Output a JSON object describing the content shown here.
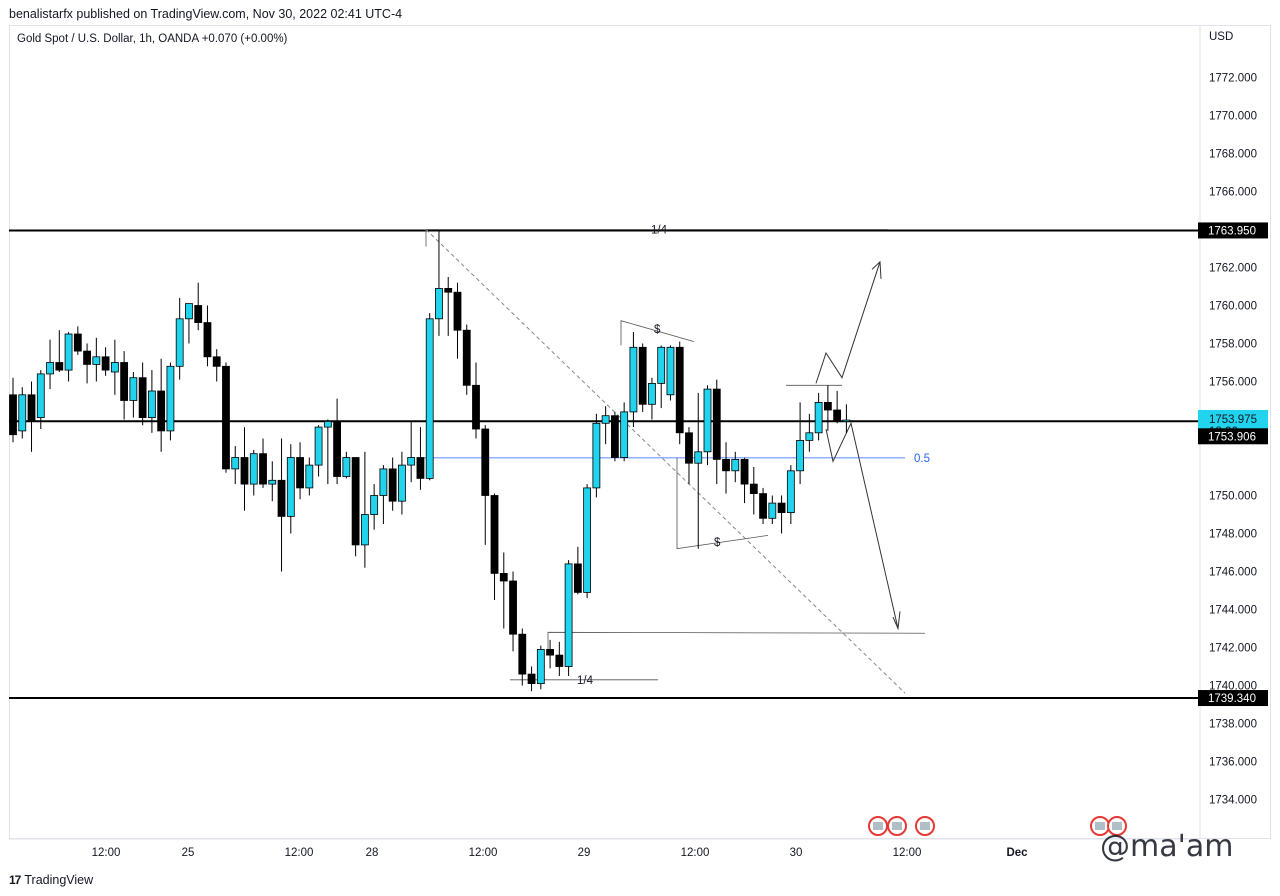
{
  "header": {
    "published": "benalistarfx published on TradingView.com, Nov 30, 2022 02:41 UTC-4"
  },
  "symbol": {
    "line": "Gold Spot / U.S. Dollar, 1h, OANDA  +0.070 (+0.00%)"
  },
  "footer": {
    "brand": "TradingView"
  },
  "watermark": "@ma'am",
  "colors": {
    "up": "#22d3ee",
    "down": "#000000",
    "level": "#000000",
    "fib": "#2962ff",
    "price_tag": "#22d3ee"
  },
  "chart_data": {
    "type": "candlestick",
    "currency": "USD",
    "ylim": [
      1733,
      1774
    ],
    "y_ticks": [
      "1772.000",
      "1770.000",
      "1768.000",
      "1766.000",
      "1762.000",
      "1760.000",
      "1758.000",
      "1756.000",
      "1750.000",
      "1748.000",
      "1746.000",
      "1744.000",
      "1742.000",
      "1740.000",
      "1738.000",
      "1736.000",
      "1734.000"
    ],
    "x_ticks": [
      "12:00",
      "25",
      "12:00",
      "28",
      "12:00",
      "29",
      "12:00",
      "30",
      "12:00",
      "Dec"
    ],
    "levels": [
      {
        "price": 1763.95,
        "label": "1763.950"
      },
      {
        "price": 1753.906,
        "label": "1753.906"
      },
      {
        "price": 1739.34,
        "label": "1739.340"
      }
    ],
    "last_price": {
      "price": 1753.975,
      "label": "1753.975",
      "countdown": "18:26"
    },
    "fib_label": "0.5",
    "annotations": [
      "1/4",
      "1/4",
      "$",
      "$"
    ],
    "candles": [
      [
        1755.3,
        1756.2,
        1752.8,
        1753.2
      ],
      [
        1753.4,
        1755.7,
        1753.0,
        1755.3
      ],
      [
        1755.3,
        1756.0,
        1752.3,
        1753.9
      ],
      [
        1754.1,
        1756.6,
        1753.5,
        1756.4
      ],
      [
        1756.4,
        1758.2,
        1755.6,
        1757.0
      ],
      [
        1757.0,
        1758.7,
        1756.5,
        1756.6
      ],
      [
        1756.6,
        1758.6,
        1756.0,
        1758.5
      ],
      [
        1758.5,
        1758.9,
        1757.4,
        1757.6
      ],
      [
        1757.6,
        1758.0,
        1755.9,
        1756.9
      ],
      [
        1756.9,
        1758.3,
        1756.0,
        1757.3
      ],
      [
        1757.3,
        1757.8,
        1756.3,
        1756.6
      ],
      [
        1756.5,
        1758.2,
        1755.3,
        1757.0
      ],
      [
        1757.0,
        1757.6,
        1754.0,
        1755.0
      ],
      [
        1755.0,
        1756.5,
        1754.1,
        1756.2
      ],
      [
        1756.2,
        1757.0,
        1753.7,
        1754.1
      ],
      [
        1754.1,
        1756.6,
        1753.3,
        1755.5
      ],
      [
        1755.5,
        1757.2,
        1752.3,
        1753.4
      ],
      [
        1753.4,
        1757.0,
        1752.9,
        1756.8
      ],
      [
        1756.8,
        1760.4,
        1756.1,
        1759.3
      ],
      [
        1759.3,
        1760.0,
        1758.0,
        1760.1
      ],
      [
        1760.0,
        1761.2,
        1758.7,
        1759.1
      ],
      [
        1759.1,
        1760.0,
        1756.8,
        1757.3
      ],
      [
        1757.3,
        1757.7,
        1756.0,
        1756.8
      ],
      [
        1756.8,
        1757.0,
        1751.2,
        1751.4
      ],
      [
        1751.4,
        1752.6,
        1750.6,
        1752.0
      ],
      [
        1752.0,
        1753.6,
        1749.2,
        1750.6
      ],
      [
        1750.6,
        1752.4,
        1750.0,
        1752.2
      ],
      [
        1752.2,
        1753.0,
        1750.4,
        1750.6
      ],
      [
        1750.6,
        1751.8,
        1749.7,
        1750.8
      ],
      [
        1750.8,
        1753.0,
        1746.0,
        1748.9
      ],
      [
        1748.9,
        1752.7,
        1748.0,
        1752.0
      ],
      [
        1752.0,
        1752.8,
        1749.8,
        1750.4
      ],
      [
        1750.4,
        1752.0,
        1750.0,
        1751.6
      ],
      [
        1751.6,
        1753.7,
        1751.0,
        1753.6
      ],
      [
        1753.6,
        1754.0,
        1750.6,
        1753.9
      ],
      [
        1753.9,
        1755.1,
        1750.6,
        1751.0
      ],
      [
        1751.0,
        1752.3,
        1750.9,
        1752.0
      ],
      [
        1752.0,
        1752.0,
        1746.8,
        1747.4
      ],
      [
        1747.4,
        1752.3,
        1746.2,
        1749.0
      ],
      [
        1749.0,
        1750.6,
        1748.2,
        1750.0
      ],
      [
        1750.0,
        1751.6,
        1748.5,
        1751.4
      ],
      [
        1751.4,
        1752.0,
        1749.2,
        1749.7
      ],
      [
        1749.7,
        1752.3,
        1749.0,
        1751.6
      ],
      [
        1751.6,
        1753.9,
        1750.7,
        1752.0
      ],
      [
        1752.0,
        1753.6,
        1750.3,
        1750.9
      ],
      [
        1750.9,
        1759.6,
        1750.8,
        1759.3
      ],
      [
        1759.3,
        1763.9,
        1758.4,
        1760.9
      ],
      [
        1760.9,
        1761.5,
        1758.4,
        1760.7
      ],
      [
        1760.7,
        1761.2,
        1757.2,
        1758.7
      ],
      [
        1758.7,
        1759.0,
        1755.3,
        1755.8
      ],
      [
        1755.8,
        1757.0,
        1753.0,
        1753.5
      ],
      [
        1753.5,
        1753.7,
        1747.4,
        1750.0
      ],
      [
        1750.0,
        1750.1,
        1744.5,
        1745.9
      ],
      [
        1745.9,
        1747.0,
        1743.0,
        1745.5
      ],
      [
        1745.5,
        1746.0,
        1741.8,
        1742.7
      ],
      [
        1742.7,
        1743.0,
        1740.0,
        1740.6
      ],
      [
        1740.6,
        1741.0,
        1739.7,
        1740.1
      ],
      [
        1740.1,
        1742.1,
        1739.8,
        1741.9
      ],
      [
        1741.9,
        1742.4,
        1740.9,
        1741.6
      ],
      [
        1741.6,
        1742.3,
        1740.5,
        1741.0
      ],
      [
        1741.0,
        1746.6,
        1740.5,
        1746.4
      ],
      [
        1746.4,
        1747.3,
        1744.8,
        1744.9
      ],
      [
        1744.9,
        1750.6,
        1744.6,
        1750.4
      ],
      [
        1750.4,
        1754.3,
        1749.9,
        1753.8
      ],
      [
        1753.8,
        1754.7,
        1752.7,
        1754.2
      ],
      [
        1754.2,
        1754.4,
        1751.8,
        1752.0
      ],
      [
        1752.0,
        1754.9,
        1751.8,
        1754.4
      ],
      [
        1754.4,
        1758.6,
        1753.6,
        1757.8
      ],
      [
        1757.8,
        1758.0,
        1754.4,
        1754.8
      ],
      [
        1754.8,
        1756.2,
        1754.0,
        1755.9
      ],
      [
        1755.9,
        1757.9,
        1754.6,
        1757.8
      ],
      [
        1755.3,
        1757.9,
        1755.0,
        1757.8
      ],
      [
        1757.8,
        1758.1,
        1752.7,
        1753.3
      ],
      [
        1753.3,
        1753.6,
        1750.6,
        1751.7
      ],
      [
        1751.7,
        1755.4,
        1747.2,
        1752.3
      ],
      [
        1752.3,
        1755.8,
        1751.6,
        1755.6
      ],
      [
        1755.6,
        1756.1,
        1750.6,
        1751.9
      ],
      [
        1751.9,
        1752.8,
        1750.1,
        1751.3
      ],
      [
        1751.3,
        1752.3,
        1750.7,
        1751.9
      ],
      [
        1751.9,
        1752.0,
        1749.6,
        1750.6
      ],
      [
        1750.6,
        1751.5,
        1749.0,
        1750.1
      ],
      [
        1750.1,
        1750.4,
        1748.5,
        1748.8
      ],
      [
        1748.8,
        1750.0,
        1748.5,
        1749.6
      ],
      [
        1749.6,
        1750.0,
        1748.0,
        1749.1
      ],
      [
        1749.1,
        1751.6,
        1748.5,
        1751.3
      ],
      [
        1751.3,
        1754.9,
        1750.6,
        1752.9
      ],
      [
        1752.9,
        1754.3,
        1752.3,
        1753.3
      ],
      [
        1753.3,
        1755.4,
        1752.9,
        1754.9
      ],
      [
        1754.9,
        1755.8,
        1753.4,
        1754.5
      ],
      [
        1754.5,
        1755.5,
        1753.8,
        1753.9
      ],
      [
        1753.9,
        1754.8,
        1753.3,
        1753.97
      ]
    ]
  }
}
